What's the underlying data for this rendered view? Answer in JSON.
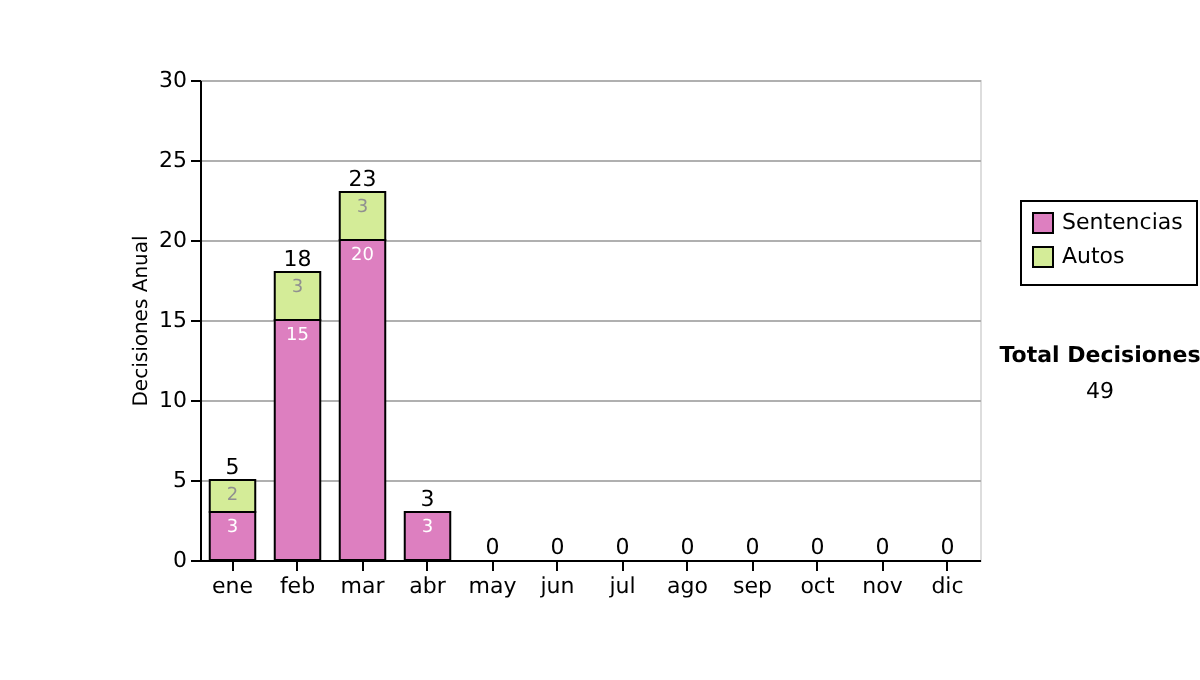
{
  "chart_data": {
    "type": "bar",
    "stacked": true,
    "ylabel": "Decisiones Anual",
    "categories": [
      "ene",
      "feb",
      "mar",
      "abr",
      "may",
      "jun",
      "jul",
      "ago",
      "sep",
      "oct",
      "nov",
      "dic"
    ],
    "series": [
      {
        "name": "Sentencias",
        "color": "#dd7fc0",
        "values": [
          3,
          15,
          20,
          3,
          0,
          0,
          0,
          0,
          0,
          0,
          0,
          0
        ],
        "value_labels": [
          "3",
          "15",
          "20",
          "3",
          null,
          null,
          null,
          null,
          null,
          null,
          null,
          null
        ]
      },
      {
        "name": "Autos",
        "color": "#d4ec98",
        "values": [
          2,
          3,
          3,
          0,
          0,
          0,
          0,
          0,
          0,
          0,
          0,
          0
        ],
        "value_labels": [
          "2",
          "3",
          "3",
          null,
          null,
          null,
          null,
          null,
          null,
          null,
          null,
          null
        ]
      }
    ],
    "totals": [
      "5",
      "18",
      "23",
      "3",
      "0",
      "0",
      "0",
      "0",
      "0",
      "0",
      "0",
      "0"
    ],
    "ylim": [
      0,
      30
    ],
    "yticks": [
      0,
      5,
      10,
      15,
      20,
      25,
      30
    ],
    "grid": "y",
    "legend": "right",
    "annotations": [
      "Total Decisiones",
      "49"
    ]
  }
}
